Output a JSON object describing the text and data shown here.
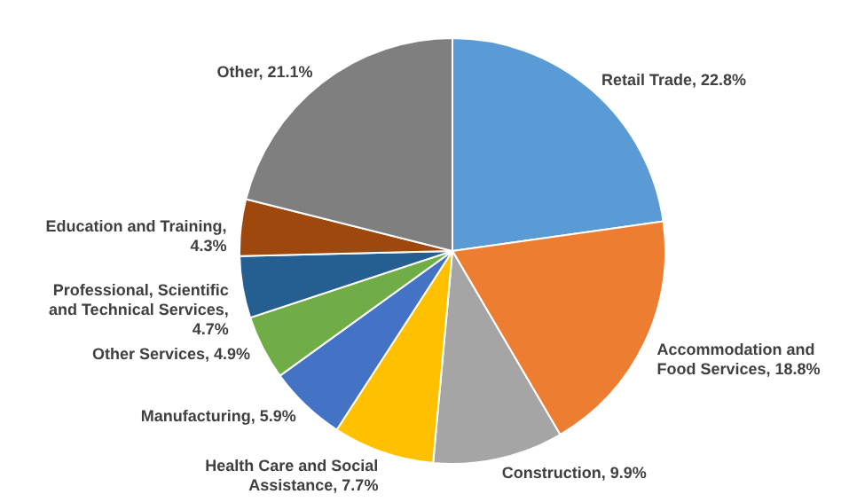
{
  "chart_data": {
    "type": "pie",
    "categories": [
      "Retail Trade, 22.8%",
      "Accommodation and Food Services, 18.8%",
      "Construction, 9.9%",
      "Health Care and Social Assistance, 7.7%",
      "Manufacturing, 5.9%",
      "Other Services, 4.9%",
      "Professional, Scientific and Technical Services, 4.7%",
      "Education and Training, 4.3%",
      "Other, 21.1%"
    ],
    "values": [
      22.8,
      18.8,
      9.9,
      7.7,
      5.9,
      4.9,
      4.7,
      4.3,
      21.1
    ],
    "colors": [
      "#5b9bd5",
      "#ed7d31",
      "#a5a5a5",
      "#ffc000",
      "#4472c4",
      "#70ad47",
      "#255e91",
      "#9e480e",
      "#7f7f7f"
    ]
  }
}
